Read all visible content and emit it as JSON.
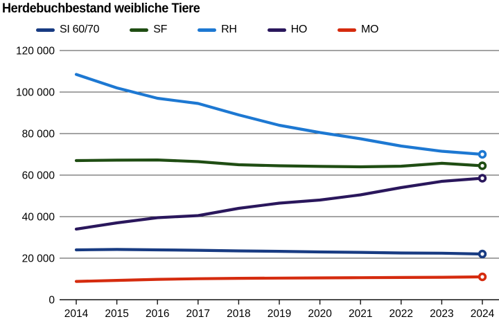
{
  "title": "Herdebuchbestand weibliche Tiere",
  "chart_data": {
    "type": "line",
    "x_label": "",
    "y_label": "",
    "x": [
      2014,
      2015,
      2016,
      2017,
      2018,
      2019,
      2020,
      2021,
      2022,
      2023,
      2024
    ],
    "series": [
      {
        "name": "SI 60/70",
        "color": "#183b82",
        "values": [
          24000,
          24200,
          24000,
          23800,
          23500,
          23300,
          23000,
          22800,
          22500,
          22400,
          22000
        ]
      },
      {
        "name": "SF",
        "color": "#1f4d13",
        "values": [
          67000,
          67200,
          67300,
          66500,
          65000,
          64500,
          64200,
          64000,
          64300,
          65700,
          64500
        ]
      },
      {
        "name": "RH",
        "color": "#1d78d2",
        "values": [
          108500,
          102000,
          97000,
          94500,
          89000,
          84000,
          80500,
          77500,
          74000,
          71500,
          70000
        ]
      },
      {
        "name": "HO",
        "color": "#2a175c",
        "values": [
          34000,
          37000,
          39500,
          40500,
          44000,
          46500,
          48000,
          50500,
          54000,
          57000,
          58500
        ]
      },
      {
        "name": "MO",
        "color": "#d52b0e",
        "values": [
          8800,
          9300,
          9800,
          10100,
          10300,
          10400,
          10500,
          10600,
          10700,
          10800,
          11000
        ]
      }
    ],
    "ylim": [
      0,
      120000
    ],
    "yticks": [
      {
        "value": 0,
        "label": "0"
      },
      {
        "value": 20000,
        "label": "20 000"
      },
      {
        "value": 40000,
        "label": "40 000"
      },
      {
        "value": 60000,
        "label": "60 000"
      },
      {
        "value": 80000,
        "label": "80 000"
      },
      {
        "value": 100000,
        "label": "100 000"
      },
      {
        "value": 120000,
        "label": "120 000"
      }
    ],
    "grid": true,
    "grid_color": "#4a4a4a",
    "axis_color": "#111111",
    "text_color": "#000000",
    "legend_position": "top",
    "end_marker": "open-circle"
  }
}
